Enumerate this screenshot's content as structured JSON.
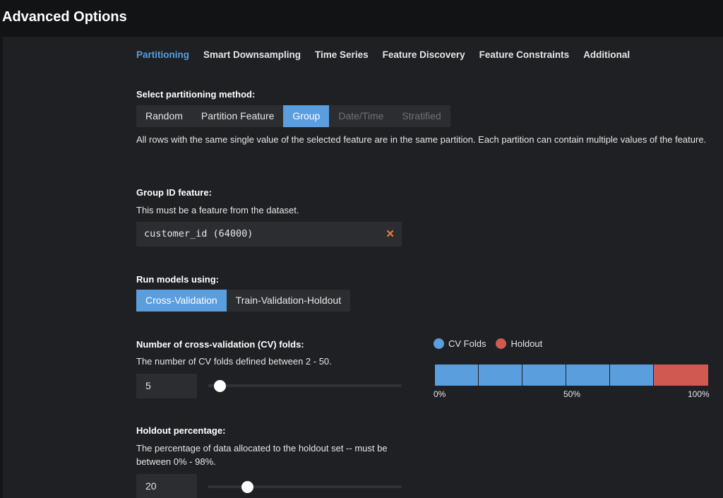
{
  "header": {
    "title": "Advanced Options"
  },
  "tabs": [
    {
      "label": "Partitioning",
      "active": true
    },
    {
      "label": "Smart Downsampling",
      "active": false
    },
    {
      "label": "Time Series",
      "active": false
    },
    {
      "label": "Feature Discovery",
      "active": false
    },
    {
      "label": "Feature Constraints",
      "active": false
    },
    {
      "label": "Additional",
      "active": false
    }
  ],
  "partitioning": {
    "label": "Select partitioning method:",
    "methods": [
      {
        "label": "Random",
        "state": "normal"
      },
      {
        "label": "Partition Feature",
        "state": "normal"
      },
      {
        "label": "Group",
        "state": "active"
      },
      {
        "label": "Date/Time",
        "state": "disabled"
      },
      {
        "label": "Stratified",
        "state": "disabled"
      }
    ],
    "description": "All rows with the same single value of the selected feature are in the same partition. Each partition can contain multiple values of the feature."
  },
  "group_feature": {
    "label": "Group ID feature:",
    "help": "This must be a feature from the dataset.",
    "value": "customer_id (64000)",
    "clear_icon": "close-icon"
  },
  "run_models": {
    "label": "Run models using:",
    "options": [
      {
        "label": "Cross-Validation",
        "state": "active"
      },
      {
        "label": "Train-Validation-Holdout",
        "state": "normal"
      }
    ]
  },
  "cv_folds": {
    "label": "Number of cross-validation (CV) folds:",
    "help": "The number of CV folds defined between 2 - 50.",
    "value": "5",
    "min": 2,
    "max": 50
  },
  "holdout": {
    "label": "Holdout percentage:",
    "help": "The percentage of data allocated to the holdout set -- must be between 0% - 98%.",
    "value": "20",
    "min": 0,
    "max": 98
  },
  "split_chart": {
    "legend": [
      {
        "label": "CV Folds",
        "color": "#5b9ede"
      },
      {
        "label": "Holdout",
        "color": "#d05a52"
      }
    ],
    "ticks": [
      "0%",
      "50%",
      "100%"
    ],
    "folds": 5,
    "holdout_percent": 20
  }
}
